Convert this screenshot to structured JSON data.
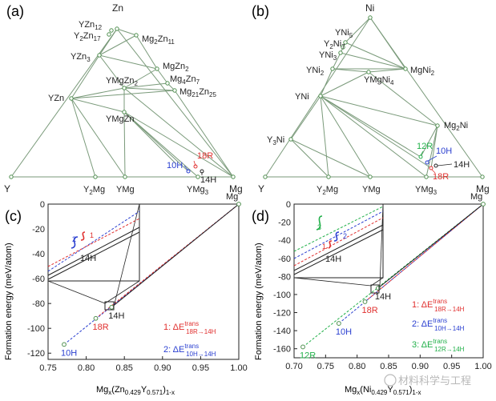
{
  "figure": {
    "panels": [
      {
        "id": "a",
        "label": "(a)"
      },
      {
        "id": "b",
        "label": "(b)"
      },
      {
        "id": "c",
        "label": "(c)"
      },
      {
        "id": "d",
        "label": "(d)"
      }
    ],
    "watermark": "材料科学与工程"
  },
  "ternary_a": {
    "corners": {
      "top": "Zn",
      "left": "Y",
      "right": "Mg"
    },
    "phases": [
      "YZn12",
      "Y2Zn17",
      "Mg2Zn11",
      "YZn3",
      "MgZn2",
      "Mg4Zn7",
      "YMgZn2",
      "Mg21Zn25",
      "YZn",
      "YMgZn",
      "Y2Mg",
      "YMg",
      "YMg3"
    ],
    "annotations": {
      "p18": "18R",
      "p10": "10H",
      "p14": "14H"
    }
  },
  "ternary_b": {
    "corners": {
      "top": "Ni",
      "left": "Y",
      "right": "Mg"
    },
    "phases": [
      "YNi5",
      "Y2Ni7",
      "YNi3",
      "YNi2",
      "YMgNi4",
      "MgNi2",
      "YNi",
      "Mg2Ni",
      "Y3Ni",
      "Y2Mg",
      "YMg",
      "YMg3"
    ],
    "annotations": {
      "p12": "12R",
      "p10": "10H",
      "p14": "14H",
      "p18": "18R"
    }
  },
  "colors": {
    "red": "#e0302f",
    "blue": "#2a3fd0",
    "green": "#22b04a",
    "edge": "#7a9a7a",
    "point": "#4f8f4f"
  },
  "chart_data": [
    {
      "panel": "c",
      "type": "line",
      "xlabel": "Mgx(Zn0.429Y0.571)1-x",
      "ylabel": "Formation energy (meV/atom)",
      "xlim": [
        0.75,
        1.0
      ],
      "ylim": [
        -125,
        0
      ],
      "xticks": [
        "0.75",
        "0.80",
        "0.85",
        "0.90",
        "0.95",
        "1.00"
      ],
      "yticks": [
        "0",
        "-20",
        "-40",
        "-60",
        "-80",
        "-100",
        "-120"
      ],
      "series": [
        {
          "name": "10H",
          "color": "#2a3fd0",
          "x": [
            0.771,
            1.0
          ],
          "y": [
            -113,
            0
          ]
        },
        {
          "name": "18R",
          "color": "#e0302f",
          "x": [
            0.8125,
            1.0
          ],
          "y": [
            -92,
            0
          ]
        },
        {
          "name": "14H",
          "color": "#222222",
          "x": [
            0.8333,
            1.0
          ],
          "y": [
            -83,
            0
          ]
        }
      ],
      "points": [
        {
          "x": 0.771,
          "y": -113,
          "label": "10H",
          "color": "#2a3fd0"
        },
        {
          "x": 0.8125,
          "y": -92,
          "label": "18R",
          "color": "#e0302f"
        },
        {
          "x": 0.8333,
          "y": -83,
          "label": "14H",
          "color": "#222222"
        },
        {
          "x": 1.0,
          "y": 0,
          "label": "Mg",
          "color": "#222222"
        }
      ],
      "legend": [
        {
          "prefix": "1: ΔE",
          "sup": "trans",
          "sub": "18R→14H",
          "color": "#e0302f"
        },
        {
          "prefix": "2: ΔE",
          "sup": "trans",
          "sub": "10H→14H",
          "color": "#2a3fd0"
        }
      ],
      "inset": {
        "label": "14H",
        "marks": [
          "1",
          "2"
        ]
      }
    },
    {
      "panel": "d",
      "type": "line",
      "xlabel": "Mgx(Ni0.429Y0.571)1-x",
      "ylabel": "Formation energy (meV/atom)",
      "xlim": [
        0.7,
        1.0
      ],
      "ylim": [
        -170,
        0
      ],
      "xticks": [
        "0.70",
        "0.75",
        "0.80",
        "0.85",
        "0.90",
        "0.95",
        "1.00"
      ],
      "yticks": [
        "0",
        "-20",
        "-40",
        "-60",
        "-80",
        "-100",
        "-120",
        "-140",
        "-160"
      ],
      "series": [
        {
          "name": "12R",
          "color": "#22b04a",
          "x": [
            0.714,
            1.0
          ],
          "y": [
            -158,
            0
          ]
        },
        {
          "name": "10H",
          "color": "#2a3fd0",
          "x": [
            0.771,
            1.0
          ],
          "y": [
            -132,
            0
          ]
        },
        {
          "name": "18R",
          "color": "#e0302f",
          "x": [
            0.8125,
            1.0
          ],
          "y": [
            -108,
            0
          ]
        },
        {
          "name": "14H",
          "color": "#222222",
          "x": [
            0.8333,
            1.0
          ],
          "y": [
            -93,
            0
          ]
        }
      ],
      "points": [
        {
          "x": 0.714,
          "y": -158,
          "label": "12R",
          "color": "#22b04a"
        },
        {
          "x": 0.771,
          "y": -132,
          "label": "10H",
          "color": "#2a3fd0"
        },
        {
          "x": 0.8125,
          "y": -108,
          "label": "18R",
          "color": "#e0302f"
        },
        {
          "x": 0.8333,
          "y": -93,
          "label": "14H",
          "color": "#222222"
        },
        {
          "x": 1.0,
          "y": 0,
          "label": "Mg",
          "color": "#222222"
        }
      ],
      "legend": [
        {
          "prefix": "1: ΔE",
          "sup": "trans",
          "sub": "18R→14H",
          "color": "#e0302f"
        },
        {
          "prefix": "2: ΔE",
          "sup": "trans",
          "sub": "10H→14H",
          "color": "#2a3fd0"
        },
        {
          "prefix": "3: ΔE",
          "sup": "trans",
          "sub": "12R→14H",
          "color": "#22b04a"
        }
      ],
      "inset": {
        "label": "14H",
        "marks": [
          "1",
          "2",
          "3"
        ]
      }
    }
  ]
}
